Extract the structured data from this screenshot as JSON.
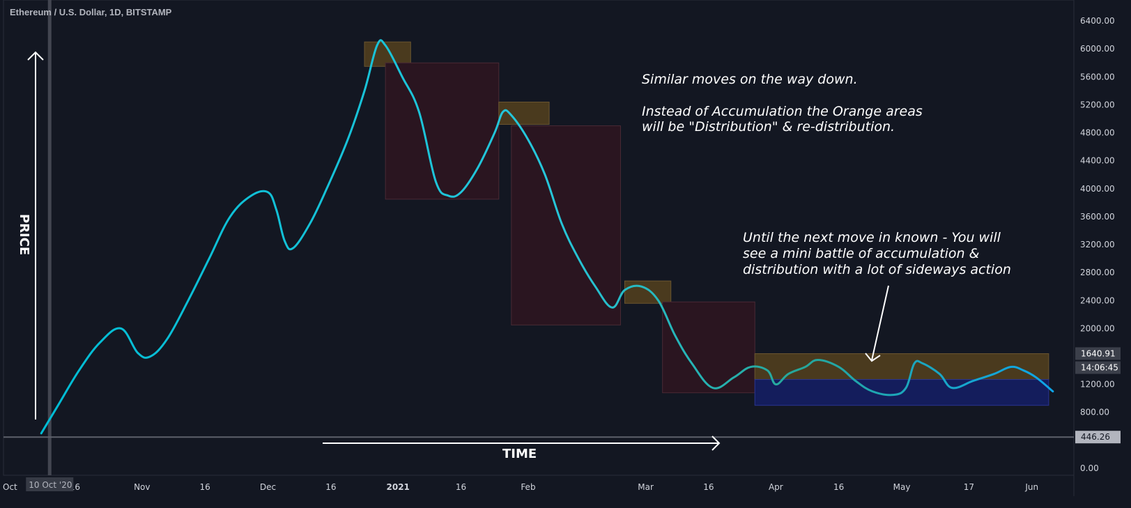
{
  "header": {
    "title": "Ethereum / U.S. Dollar, 1D, BITSTAMP"
  },
  "chart_data": {
    "type": "line",
    "title": "Ethereum / U.S. Dollar, 1D, BITSTAMP",
    "ylim": [
      -100,
      6700
    ],
    "y_ticks": [
      "6400.00",
      "6000.00",
      "5600.00",
      "5200.00",
      "4800.00",
      "4400.00",
      "4000.00",
      "3600.00",
      "3200.00",
      "2800.00",
      "2400.00",
      "2000.00",
      "1200.00",
      "800.00",
      "0.00"
    ],
    "y_tick_values": [
      6400,
      6000,
      5600,
      5200,
      4800,
      4400,
      4000,
      3600,
      3200,
      2800,
      2400,
      2000,
      1200,
      800,
      0
    ],
    "x_ticks": [
      {
        "label": "Oct",
        "day": -10,
        "bold": false
      },
      {
        "label": "16",
        "day": 6,
        "bold": false
      },
      {
        "label": "Nov",
        "day": 22,
        "bold": false
      },
      {
        "label": "16",
        "day": 37,
        "bold": false
      },
      {
        "label": "Dec",
        "day": 52,
        "bold": false
      },
      {
        "label": "16",
        "day": 67,
        "bold": false
      },
      {
        "label": "2021",
        "day": 83,
        "bold": true
      },
      {
        "label": "16",
        "day": 98,
        "bold": false
      },
      {
        "label": "Feb",
        "day": 114,
        "bold": false
      },
      {
        "label": "Mar",
        "day": 142,
        "bold": false
      },
      {
        "label": "16",
        "day": 157,
        "bold": false
      },
      {
        "label": "Apr",
        "day": 173,
        "bold": false
      },
      {
        "label": "16",
        "day": 188,
        "bold": false
      },
      {
        "label": "May",
        "day": 203,
        "bold": false
      },
      {
        "label": "17",
        "day": 219,
        "bold": false
      },
      {
        "label": "Jun",
        "day": 234,
        "bold": false
      }
    ],
    "x_range": [
      -11,
      244
    ],
    "series": [
      {
        "points": [
          [
            -2,
            500
          ],
          [
            2,
            900
          ],
          [
            7,
            1400
          ],
          [
            12,
            1800
          ],
          [
            17,
            2000
          ],
          [
            21,
            1650
          ],
          [
            24,
            1600
          ],
          [
            28,
            1850
          ],
          [
            33,
            2400
          ],
          [
            38,
            3000
          ],
          [
            43,
            3600
          ],
          [
            48,
            3900
          ],
          [
            52,
            3950
          ],
          [
            54,
            3700
          ],
          [
            56,
            3250
          ],
          [
            58,
            3150
          ],
          [
            62,
            3500
          ],
          [
            66,
            4000
          ],
          [
            71,
            4700
          ],
          [
            75,
            5400
          ],
          [
            78,
            6050
          ],
          [
            80,
            6050
          ],
          [
            84,
            5600
          ],
          [
            88,
            5100
          ],
          [
            92,
            4100
          ],
          [
            95,
            3900
          ],
          [
            98,
            3950
          ],
          [
            102,
            4300
          ],
          [
            106,
            4800
          ],
          [
            108,
            5100
          ],
          [
            110,
            5050
          ],
          [
            114,
            4700
          ],
          [
            118,
            4200
          ],
          [
            122,
            3500
          ],
          [
            126,
            3000
          ],
          [
            130,
            2600
          ],
          [
            134,
            2300
          ],
          [
            137,
            2550
          ],
          [
            141,
            2600
          ],
          [
            145,
            2400
          ],
          [
            149,
            1900
          ],
          [
            153,
            1500
          ],
          [
            158,
            1150
          ],
          [
            163,
            1300
          ],
          [
            167,
            1450
          ],
          [
            171,
            1400
          ],
          [
            173,
            1200
          ],
          [
            176,
            1350
          ],
          [
            180,
            1450
          ],
          [
            183,
            1550
          ],
          [
            188,
            1450
          ],
          [
            192,
            1250
          ],
          [
            196,
            1100
          ],
          [
            201,
            1050
          ],
          [
            204,
            1150
          ],
          [
            206,
            1500
          ],
          [
            208,
            1500
          ],
          [
            212,
            1350
          ],
          [
            215,
            1150
          ],
          [
            220,
            1250
          ],
          [
            225,
            1350
          ],
          [
            229,
            1450
          ],
          [
            232,
            1400
          ],
          [
            235,
            1300
          ],
          [
            239,
            1100
          ]
        ]
      }
    ],
    "zones": [
      {
        "type": "distribution",
        "x": [
          75,
          86
        ],
        "y": [
          5750,
          6100
        ],
        "color": "#4a3a1e"
      },
      {
        "type": "decline",
        "x": [
          80,
          107
        ],
        "y": [
          3850,
          5800
        ],
        "color": "#2a1520"
      },
      {
        "type": "distribution",
        "x": [
          107,
          119
        ],
        "y": [
          4920,
          5240
        ],
        "color": "#4a3a1e"
      },
      {
        "type": "decline",
        "x": [
          110,
          136
        ],
        "y": [
          2050,
          4900
        ],
        "color": "#2a1520"
      },
      {
        "type": "distribution",
        "x": [
          137,
          148
        ],
        "y": [
          2360,
          2680
        ],
        "color": "#4a3a1e"
      },
      {
        "type": "decline",
        "x": [
          146,
          168
        ],
        "y": [
          1080,
          2380
        ],
        "color": "#2a1520"
      },
      {
        "type": "distribution",
        "x": [
          168,
          238
        ],
        "y": [
          1270,
          1640
        ],
        "color": "#4a3a1e"
      },
      {
        "type": "accumulation",
        "x": [
          168,
          238
        ],
        "y": [
          900,
          1270
        ],
        "color": "#141d5c"
      }
    ],
    "price_tags": [
      {
        "text": "1640.91",
        "value": 1640.91
      },
      {
        "text": "14:06:45",
        "value": 1440
      }
    ],
    "horizontal_line": {
      "value": 446.26,
      "label": "446.26"
    },
    "vertical_line": {
      "day": 0,
      "label": "10 Oct '20"
    }
  },
  "annotations": {
    "main_line1": "Similar moves on the way down.",
    "main_line2": "Instead of Accumulation the Orange areas",
    "main_line3": "will be \"Distribution\" & re-distribution.",
    "side_line1": "Until the next move in known - You will",
    "side_line2": "see a mini battle of accumulation &",
    "side_line3": "distribution with a lot of sideways action",
    "price_label": "PRICE",
    "time_label": "TIME"
  },
  "colors": {
    "background": "#131722",
    "line_start": "#00bcd4",
    "line_end": "#26a69a",
    "axis_text": "#d1d4dc"
  }
}
